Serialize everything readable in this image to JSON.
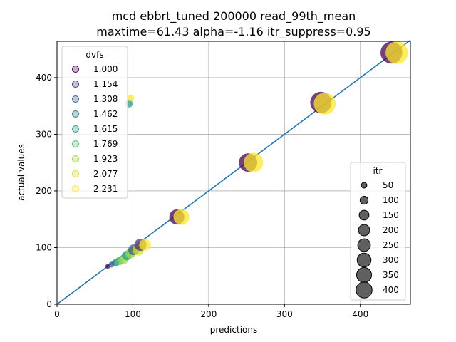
{
  "chart_data": {
    "type": "scatter",
    "title_line1": "mcd ebbrt_tuned 200000 read_99th_mean",
    "title_line2": "maxtime=61.43 alpha=-1.16 itr_suppress=0.95",
    "xlabel": "predictions",
    "ylabel": "actual values",
    "xlim": [
      0,
      466
    ],
    "ylim": [
      0,
      464
    ],
    "xticks": [
      0,
      100,
      200,
      300,
      400
    ],
    "yticks": [
      0,
      100,
      200,
      300,
      400
    ],
    "grid": true,
    "identity_line": {
      "from": [
        0,
        0
      ],
      "to": [
        466,
        466
      ],
      "color": "#1f77b4"
    },
    "dvfs_legend": {
      "title": "dvfs",
      "placement": "upper-left",
      "entries": [
        {
          "label": "1.000",
          "color": "#440154"
        },
        {
          "label": "1.154",
          "color": "#46327e"
        },
        {
          "label": "1.308",
          "color": "#365c8d"
        },
        {
          "label": "1.462",
          "color": "#277f8e"
        },
        {
          "label": "1.615",
          "color": "#1fa187"
        },
        {
          "label": "1.769",
          "color": "#4ac16d"
        },
        {
          "label": "1.923",
          "color": "#a0da39"
        },
        {
          "label": "2.077",
          "color": "#d4e11a"
        },
        {
          "label": "2.231",
          "color": "#fde725"
        }
      ]
    },
    "itr_legend": {
      "title": "itr",
      "placement": "lower-right",
      "entries": [
        {
          "label": "50",
          "value": 50
        },
        {
          "label": "100",
          "value": 100
        },
        {
          "label": "150",
          "value": 150
        },
        {
          "label": "200",
          "value": 200
        },
        {
          "label": "250",
          "value": 250
        },
        {
          "label": "300",
          "value": 300
        },
        {
          "label": "350",
          "value": 350
        },
        {
          "label": "400",
          "value": 400
        }
      ]
    },
    "points": [
      {
        "x": 67,
        "y": 67,
        "itr": 20,
        "color": "#440154"
      },
      {
        "x": 72,
        "y": 70,
        "itr": 30,
        "color": "#365c8d"
      },
      {
        "x": 77,
        "y": 73,
        "itr": 45,
        "color": "#277f8e"
      },
      {
        "x": 82,
        "y": 76,
        "itr": 60,
        "color": "#4ac16d"
      },
      {
        "x": 88,
        "y": 79,
        "itr": 70,
        "color": "#a0da39"
      },
      {
        "x": 92,
        "y": 86,
        "itr": 80,
        "color": "#1fa187"
      },
      {
        "x": 97,
        "y": 90,
        "itr": 90,
        "color": "#a0da39"
      },
      {
        "x": 101,
        "y": 96,
        "itr": 100,
        "color": "#365c8d"
      },
      {
        "x": 107,
        "y": 96,
        "itr": 110,
        "color": "#d4e11a"
      },
      {
        "x": 110,
        "y": 105,
        "itr": 130,
        "color": "#46327e"
      },
      {
        "x": 116,
        "y": 105,
        "itr": 120,
        "color": "#fde725"
      },
      {
        "x": 95,
        "y": 354,
        "itr": 50,
        "color": "#1fa187"
      },
      {
        "x": 97,
        "y": 364,
        "itr": 40,
        "color": "#fde725"
      },
      {
        "x": 158,
        "y": 154,
        "itr": 200,
        "color": "#440154"
      },
      {
        "x": 164,
        "y": 154,
        "itr": 220,
        "color": "#fde725"
      },
      {
        "x": 252,
        "y": 250,
        "itr": 300,
        "color": "#440154"
      },
      {
        "x": 259,
        "y": 250,
        "itr": 330,
        "color": "#fde725"
      },
      {
        "x": 348,
        "y": 356,
        "itr": 400,
        "color": "#440154"
      },
      {
        "x": 353,
        "y": 354,
        "itr": 420,
        "color": "#fde725"
      },
      {
        "x": 441,
        "y": 444,
        "itr": 420,
        "color": "#440154"
      },
      {
        "x": 448,
        "y": 444,
        "itr": 440,
        "color": "#fde725"
      }
    ]
  }
}
